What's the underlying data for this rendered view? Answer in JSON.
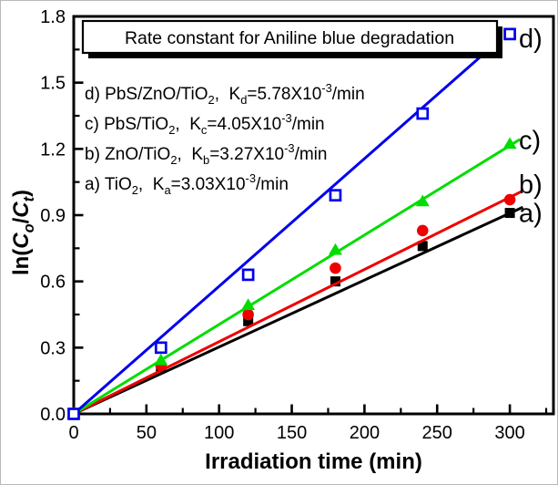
{
  "figure": {
    "bg": "#ffffff",
    "axis_color": "#000000",
    "title_box": {
      "text": "Rate constant for Aniline blue degradation"
    },
    "x_axis": {
      "title": "Irradiation time (min)",
      "max": 330,
      "major_ticks": [
        0,
        50,
        100,
        150,
        200,
        250,
        300
      ],
      "minor_step": 25
    },
    "y_axis": {
      "max": 1.8,
      "major_tick_labels": [
        "0.0",
        "0.3",
        "0.6",
        "0.9",
        "1.2",
        "1.5",
        "1.8"
      ],
      "minor_step": 0.15,
      "title_segments": [
        {
          "t": "ln(",
          "f": "n"
        },
        {
          "t": "C",
          "f": "i"
        },
        {
          "t": "o",
          "f": "is"
        },
        {
          "t": "/",
          "f": "n"
        },
        {
          "t": "C",
          "f": "i"
        },
        {
          "t": "t",
          "f": "is"
        },
        {
          "t": ")",
          "f": "n"
        }
      ]
    },
    "legend_lines": [
      {
        "segments": [
          {
            "t": "d) PbS/ZnO/TiO",
            "f": "n"
          },
          {
            "t": "2",
            "f": "s"
          },
          {
            "t": ",  K",
            "f": "n"
          },
          {
            "t": "d",
            "f": "s"
          },
          {
            "t": "=5.78X10",
            "f": "n"
          },
          {
            "t": "-3",
            "f": "p"
          },
          {
            "t": "/min",
            "f": "n"
          }
        ]
      },
      {
        "segments": [
          {
            "t": "c) PbS/TiO",
            "f": "n"
          },
          {
            "t": "2",
            "f": "s"
          },
          {
            "t": ",  K",
            "f": "n"
          },
          {
            "t": "c",
            "f": "s"
          },
          {
            "t": "=4.05X10",
            "f": "n"
          },
          {
            "t": "-3",
            "f": "p"
          },
          {
            "t": "/min",
            "f": "n"
          }
        ]
      },
      {
        "segments": [
          {
            "t": "b) ZnO/TiO",
            "f": "n"
          },
          {
            "t": "2",
            "f": "s"
          },
          {
            "t": ",  K",
            "f": "n"
          },
          {
            "t": "b",
            "f": "s"
          },
          {
            "t": "=3.27X10",
            "f": "n"
          },
          {
            "t": "-3",
            "f": "p"
          },
          {
            "t": "/min",
            "f": "n"
          }
        ]
      },
      {
        "segments": [
          {
            "t": "a) TiO",
            "f": "n"
          },
          {
            "t": "2",
            "f": "s"
          },
          {
            "t": ",  K",
            "f": "n"
          },
          {
            "t": "a",
            "f": "s"
          },
          {
            "t": "=3.03X10",
            "f": "n"
          },
          {
            "t": "-3",
            "f": "p"
          },
          {
            "t": "/min",
            "f": "n"
          }
        ]
      }
    ],
    "series": [
      {
        "id": "a",
        "tag": "a)",
        "color": "#000000",
        "marker": "square",
        "k": 0.00303,
        "line_end_t": 309,
        "tag_value": 0.87,
        "points": [
          [
            0,
            0
          ],
          [
            60,
            0.21
          ],
          [
            120,
            0.42
          ],
          [
            180,
            0.6
          ],
          [
            240,
            0.76
          ],
          [
            300,
            0.91
          ]
        ]
      },
      {
        "id": "b",
        "tag": "b)",
        "color": "#ee0000",
        "marker": "circle",
        "k": 0.00327,
        "line_end_t": 308,
        "tag_value": 1.0,
        "points": [
          [
            0,
            0
          ],
          [
            60,
            0.22
          ],
          [
            120,
            0.45
          ],
          [
            180,
            0.66
          ],
          [
            240,
            0.83
          ],
          [
            300,
            0.97
          ]
        ]
      },
      {
        "id": "c",
        "tag": "c)",
        "color": "#00dd00",
        "marker": "triangle",
        "k": 0.00405,
        "line_end_t": 307,
        "tag_value": 1.2,
        "points": [
          [
            0,
            0
          ],
          [
            60,
            0.24
          ],
          [
            120,
            0.49
          ],
          [
            180,
            0.74
          ],
          [
            240,
            0.96
          ],
          [
            300,
            1.22
          ]
        ]
      },
      {
        "id": "d",
        "tag": "d)",
        "color": "#0000ee",
        "marker": "open-square",
        "k": 0.00578,
        "line_end_t": 293,
        "tag_value": 1.66,
        "points": [
          [
            0,
            0
          ],
          [
            60,
            0.3
          ],
          [
            120,
            0.63
          ],
          [
            180,
            0.99
          ],
          [
            240,
            1.36
          ],
          [
            300,
            1.72
          ]
        ]
      }
    ]
  },
  "chart_data": {
    "type": "scatter",
    "title": "Rate constant for Aniline blue degradation",
    "xlabel": "Irradiation time (min)",
    "ylabel": "ln(Co/Ct)",
    "xlim": [
      0,
      330
    ],
    "ylim": [
      0,
      1.8
    ],
    "grid": false,
    "legend_position": "upper-left-inside",
    "x": [
      0,
      60,
      120,
      180,
      240,
      300
    ],
    "series": [
      {
        "name": "a) TiO2",
        "rate_constant": "Ka=3.03X10-3/min",
        "marker": "filled-square",
        "color": "#000000",
        "values": [
          0,
          0.21,
          0.42,
          0.6,
          0.76,
          0.91
        ],
        "fit_line": "through origin, slope 0.00303"
      },
      {
        "name": "b) ZnO/TiO2",
        "rate_constant": "Kb=3.27X10-3/min",
        "marker": "filled-circle",
        "color": "#ee0000",
        "values": [
          0,
          0.22,
          0.45,
          0.66,
          0.83,
          0.97
        ],
        "fit_line": "through origin, slope 0.00327"
      },
      {
        "name": "c) PbS/TiO2",
        "rate_constant": "Kc=4.05X10-3/min",
        "marker": "filled-triangle",
        "color": "#00dd00",
        "values": [
          0,
          0.24,
          0.49,
          0.74,
          0.96,
          1.22
        ],
        "fit_line": "through origin, slope 0.00405"
      },
      {
        "name": "d) PbS/ZnO/TiO2",
        "rate_constant": "Kd=5.78X10-3/min",
        "marker": "open-square",
        "color": "#0000ee",
        "values": [
          0,
          0.3,
          0.63,
          0.99,
          1.36,
          1.72
        ],
        "fit_line": "through origin, slope 0.00578"
      }
    ]
  }
}
